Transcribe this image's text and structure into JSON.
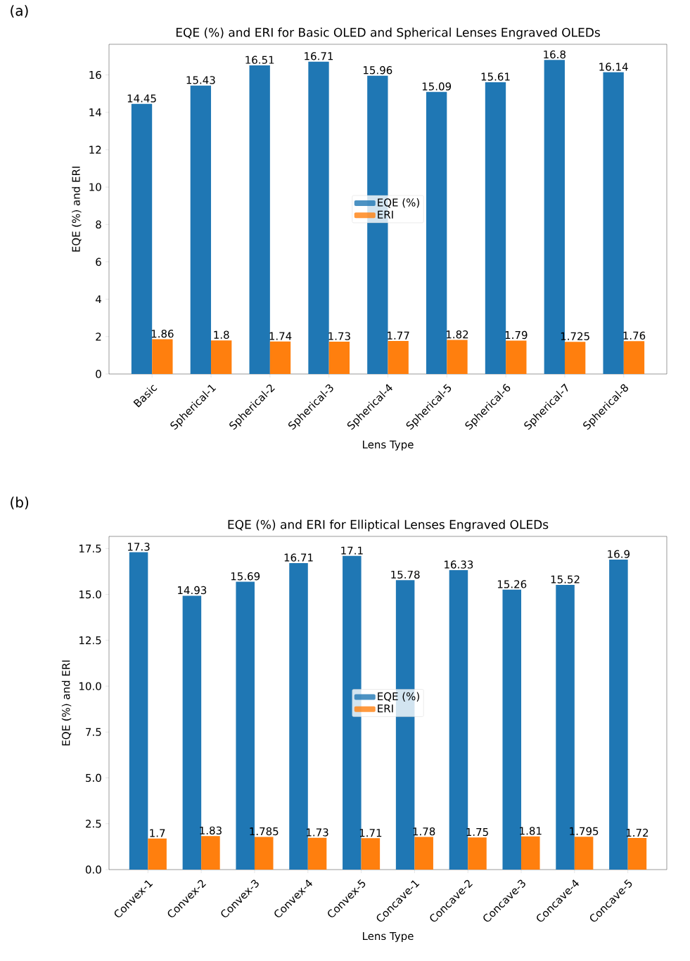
{
  "chart_data": [
    {
      "type": "bar",
      "title": "EQE (%) and ERI for Basic OLED and Spherical Lenses Engraved OLEDs",
      "xlabel": "Lens Type",
      "ylabel": "EQE (%) and ERI",
      "annotations": [
        "(a)"
      ],
      "categories": [
        "Basic",
        "Spherical-1",
        "Spherical-2",
        "Spherical-3",
        "Spherical-4",
        "Spherical-5",
        "Spherical-6",
        "Spherical-7",
        "Spherical-8"
      ],
      "series": [
        {
          "name": "EQE (%)",
          "color": "#1f77b4",
          "values": [
            14.45,
            15.43,
            16.51,
            16.71,
            15.96,
            15.09,
            15.61,
            16.8,
            16.14
          ]
        },
        {
          "name": "ERI",
          "color": "#ff7f0e",
          "values": [
            1.86,
            1.8,
            1.74,
            1.73,
            1.77,
            1.82,
            1.79,
            1.725,
            1.76
          ]
        }
      ],
      "ylim": [
        0,
        17.64
      ],
      "yticks": [
        0,
        2,
        4,
        6,
        8,
        10,
        12,
        14,
        16
      ],
      "data_labels": true,
      "legend": "center",
      "grid": false
    },
    {
      "type": "bar",
      "title": "EQE (%) and ERI for Elliptical Lenses Engraved OLEDs",
      "xlabel": "Lens Type",
      "ylabel": "EQE (%) and ERI",
      "annotations": [
        "(b)"
      ],
      "categories": [
        "Convex-1",
        "Convex-2",
        "Convex-3",
        "Convex-4",
        "Convex-5",
        "Concave-1",
        "Concave-2",
        "Concave-3",
        "Concave-4",
        "Concave-5"
      ],
      "series": [
        {
          "name": "EQE (%)",
          "color": "#1f77b4",
          "values": [
            17.3,
            14.93,
            15.69,
            16.71,
            17.1,
            15.78,
            16.33,
            15.26,
            15.52,
            16.9
          ]
        },
        {
          "name": "ERI",
          "color": "#ff7f0e",
          "values": [
            1.7,
            1.83,
            1.785,
            1.73,
            1.71,
            1.78,
            1.75,
            1.81,
            1.795,
            1.72
          ]
        }
      ],
      "ylim": [
        0,
        18.165
      ],
      "yticks": [
        {
          "value": 0,
          "label": "0.0"
        },
        2.5,
        {
          "value": 5,
          "label": "5.0"
        },
        7.5,
        {
          "value": 10,
          "label": "10.0"
        },
        12.5,
        {
          "value": 15,
          "label": "15.0"
        },
        17.5
      ],
      "data_labels": true,
      "legend": "center",
      "grid": false
    }
  ]
}
